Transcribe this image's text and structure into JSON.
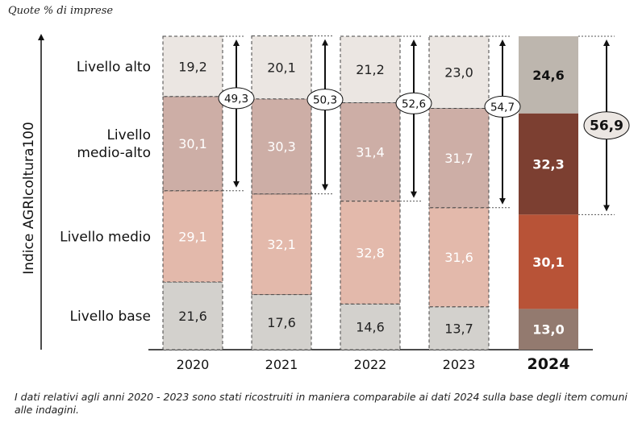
{
  "chart_data": {
    "type": "bar",
    "stacked": true,
    "subtitle": "Quote % di imprese",
    "ylabel": "Indice AGRIcoltura100",
    "xlabel": "",
    "categories": [
      "2020",
      "2021",
      "2022",
      "2023",
      "2024"
    ],
    "highlight_category": "2024",
    "ylim": [
      0,
      100
    ],
    "series": [
      {
        "name": "Livello base",
        "values": [
          21.6,
          17.6,
          14.6,
          13.7,
          13.0
        ],
        "labels": [
          "21,6",
          "17,6",
          "14,6",
          "13,7",
          "13,0"
        ],
        "color_past": "#d3d1cd",
        "color_current": "#937a6f"
      },
      {
        "name": "Livello medio",
        "values": [
          29.1,
          32.1,
          32.8,
          31.6,
          30.1
        ],
        "labels": [
          "29,1",
          "32,1",
          "32,8",
          "31,6",
          "30,1"
        ],
        "color_past": "#e3b9ab",
        "color_current": "#b85337"
      },
      {
        "name": "Livello medio-alto",
        "values": [
          30.1,
          30.3,
          31.4,
          31.7,
          32.3
        ],
        "labels": [
          "30,1",
          "30,3",
          "31,4",
          "31,7",
          "32,3"
        ],
        "color_past": "#cdaea6",
        "color_current": "#7c3f31"
      },
      {
        "name": "Livello alto",
        "values": [
          19.2,
          20.1,
          21.2,
          23.0,
          24.6
        ],
        "labels": [
          "19,2",
          "20,1",
          "21,2",
          "23,0",
          "24,6"
        ],
        "color_past": "#ebe6e2",
        "color_current": "#bdb6ae"
      }
    ],
    "row_labels": [
      {
        "lines": [
          "Livello alto"
        ]
      },
      {
        "lines": [
          "Livello",
          "medio-alto"
        ]
      },
      {
        "lines": [
          "Livello medio"
        ]
      },
      {
        "lines": [
          "Livello base"
        ]
      }
    ],
    "totals": {
      "description": "Livello medio-alto + Livello alto",
      "values": [
        49.3,
        50.3,
        52.6,
        54.7,
        56.9
      ],
      "labels": [
        "49,3",
        "50,3",
        "52,6",
        "54,7",
        "56,9"
      ]
    },
    "colors": {
      "text_past_dark": "#222222",
      "text_past_light": "#ffffff",
      "text_current": "#ffffff",
      "text_current_top": "#111111",
      "past_border": "#444444",
      "axis": "#111111"
    }
  },
  "note": "I dati relativi agli anni 2020 - 2023 sono stati ricostruiti in maniera comparabile ai dati 2024 sulla base degli item comuni alle indagini."
}
